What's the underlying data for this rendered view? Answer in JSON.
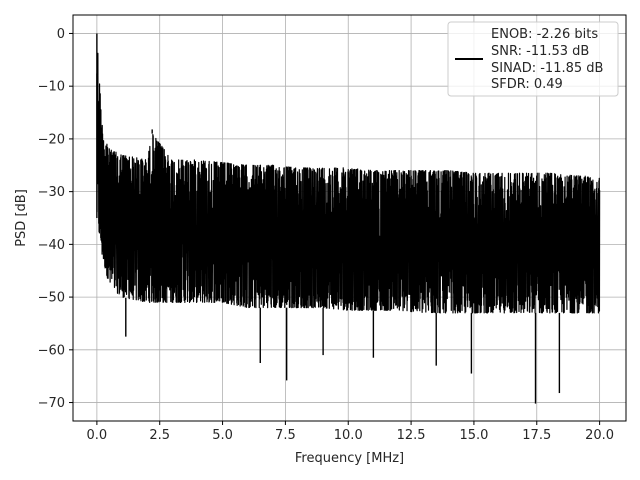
{
  "chart_data": {
    "type": "line",
    "xlabel": "Frequency [MHz]",
    "ylabel": "PSD [dB]",
    "xlim": [
      -0.95,
      21.05
    ],
    "ylim": [
      -73.5,
      3.5
    ],
    "xticks": [
      0.0,
      2.5,
      5.0,
      7.5,
      10.0,
      12.5,
      15.0,
      17.5,
      20.0
    ],
    "xtick_labels": [
      "0.0",
      "2.5",
      "5.0",
      "7.5",
      "10.0",
      "12.5",
      "15.0",
      "17.5",
      "20.0"
    ],
    "yticks": [
      0,
      -10,
      -20,
      -30,
      -40,
      -50,
      -60,
      -70
    ],
    "ytick_labels": [
      "0",
      "−10",
      "−20",
      "−30",
      "−40",
      "−50",
      "−60",
      "−70"
    ],
    "grid": true,
    "legend_position": "top-right",
    "series": [
      {
        "color": "#000000",
        "envelope": {
          "x": [
            0.0,
            0.2,
            0.5,
            1.0,
            2.0,
            2.2,
            3.0,
            4.0,
            5.0,
            6.0,
            7.0,
            8.0,
            9.0,
            10.0,
            11.0,
            12.0,
            13.0,
            14.0,
            15.0,
            16.0,
            17.0,
            18.0,
            19.0,
            20.0
          ],
          "upper": [
            0,
            -17,
            -22,
            -23,
            -24,
            -19,
            -24,
            -24,
            -24.5,
            -25,
            -25,
            -25.5,
            -25.5,
            -25.5,
            -26,
            -26,
            -26,
            -26,
            -26.5,
            -26.5,
            -26.5,
            -26.5,
            -27,
            -27
          ],
          "lower": [
            -35,
            -42,
            -48,
            -50,
            -51,
            -51,
            -51,
            -51,
            -51,
            -52,
            -52,
            -52,
            -52,
            -52.5,
            -52.5,
            -52.5,
            -53,
            -53,
            -53,
            -53,
            -53,
            -53,
            -53,
            -53
          ]
        },
        "peaks": [
          {
            "x": 0.0,
            "y": 0.0
          },
          {
            "x": 2.2,
            "y": -18.2
          },
          {
            "x": 17.45,
            "y": -70.2
          },
          {
            "x": 18.4,
            "y": -68.2
          },
          {
            "x": 7.55,
            "y": -65.8
          },
          {
            "x": 14.9,
            "y": -64.5
          },
          {
            "x": 6.5,
            "y": -62.5
          },
          {
            "x": 13.5,
            "y": -63.0
          },
          {
            "x": 11.0,
            "y": -61.5
          },
          {
            "x": 9.0,
            "y": -61.0
          },
          {
            "x": 1.15,
            "y": -57.5
          }
        ]
      }
    ],
    "legend": {
      "lines": [
        "ENOB: -2.26 bits",
        "SNR: -11.53 dB",
        "SINAD: -11.85 dB",
        "SFDR: 0.49"
      ]
    }
  }
}
